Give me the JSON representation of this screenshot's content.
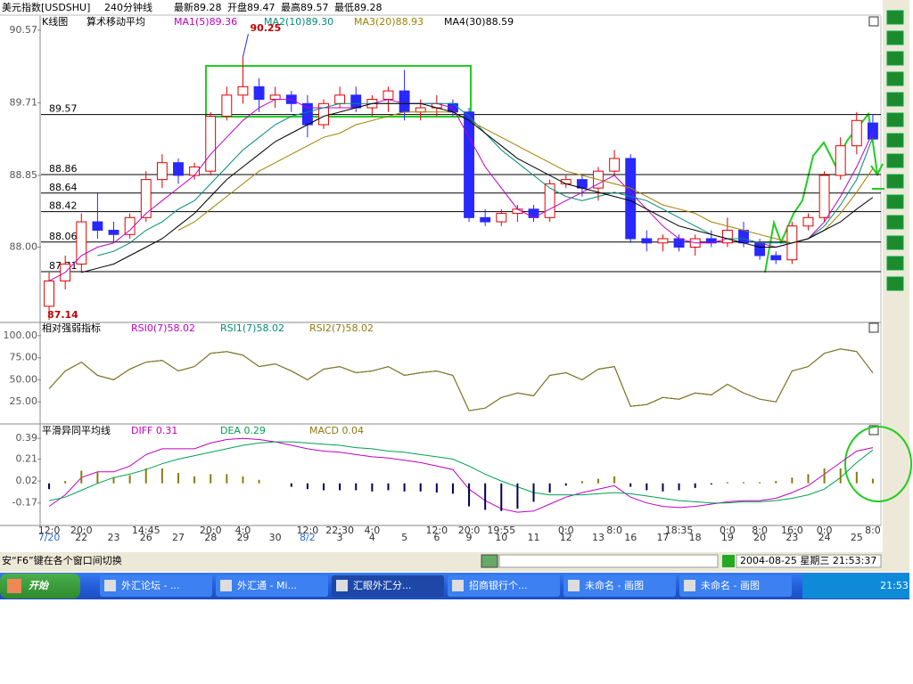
{
  "header": {
    "title": "美元指数[USDSHU]",
    "period": "240分钟线",
    "latest": "最新89.28",
    "open": "开盘89.47",
    "high": "最高89.57",
    "low": "最低89.28"
  },
  "chart_data": [
    {
      "type": "candlestick",
      "title": "K线图",
      "subtitle": "算术移动平均",
      "categories": [
        "7/20",
        null,
        "22",
        null,
        "23",
        null,
        "26",
        null,
        "27",
        null,
        "28",
        null,
        "29",
        null,
        "30",
        null,
        "8/2",
        null,
        "3",
        null,
        "4",
        null,
        "5",
        null,
        "6",
        null,
        "9",
        null,
        "10",
        null,
        "11",
        null,
        "12",
        null,
        "13",
        null,
        "16",
        null,
        "17",
        null,
        "18",
        null,
        "19",
        null,
        "20",
        null,
        "23",
        null,
        "24",
        null,
        "25",
        null
      ],
      "time_labels": [
        "12:0",
        null,
        "20:0",
        null,
        null,
        null,
        "14:45",
        null,
        null,
        null,
        "20:0",
        null,
        "4:0",
        null,
        null,
        null,
        "12:0",
        null,
        "22:30",
        null,
        "4:0",
        null,
        null,
        null,
        "12:0",
        null,
        "20:0",
        null,
        "19:55",
        null,
        null,
        null,
        "0:0",
        null,
        null,
        "8:0",
        null,
        null,
        null,
        "18:35",
        null,
        null,
        "0:0",
        null,
        "8:0",
        null,
        "16:0",
        null,
        "0:0",
        null,
        null,
        "8:0"
      ],
      "open": [
        87.3,
        87.6,
        87.8,
        88.3,
        88.2,
        88.15,
        88.35,
        88.8,
        89.0,
        88.85,
        88.9,
        89.55,
        89.8,
        89.9,
        89.75,
        89.8,
        89.7,
        89.45,
        89.7,
        89.8,
        89.65,
        89.75,
        89.85,
        89.6,
        89.65,
        89.7,
        89.6,
        88.35,
        88.3,
        88.4,
        88.45,
        88.35,
        88.75,
        88.8,
        88.7,
        88.9,
        89.05,
        88.1,
        88.05,
        88.1,
        88.0,
        88.1,
        88.05,
        88.2,
        88.05,
        87.9,
        87.85,
        88.25,
        88.35,
        88.85,
        89.2,
        89.47
      ],
      "high": [
        87.7,
        87.9,
        88.4,
        88.65,
        88.3,
        88.4,
        88.9,
        89.1,
        89.05,
        89.0,
        89.6,
        89.9,
        90.25,
        90.0,
        89.9,
        89.85,
        89.8,
        89.75,
        89.9,
        89.9,
        89.8,
        89.9,
        90.1,
        89.75,
        89.8,
        89.75,
        89.65,
        88.45,
        88.45,
        88.5,
        88.5,
        88.8,
        88.85,
        88.85,
        88.95,
        89.15,
        89.1,
        88.2,
        88.15,
        88.15,
        88.15,
        88.2,
        88.35,
        88.3,
        88.1,
        87.95,
        88.3,
        88.4,
        88.9,
        89.3,
        89.6,
        89.57
      ],
      "low": [
        87.14,
        87.5,
        87.7,
        88.1,
        88.05,
        88.1,
        88.3,
        88.7,
        88.75,
        88.8,
        88.85,
        89.5,
        89.7,
        89.6,
        89.65,
        89.6,
        89.3,
        89.4,
        89.65,
        89.6,
        89.55,
        89.6,
        89.5,
        89.5,
        89.55,
        89.55,
        88.3,
        88.25,
        88.25,
        88.3,
        88.3,
        88.3,
        88.7,
        88.6,
        88.55,
        88.85,
        88.05,
        87.95,
        87.95,
        87.95,
        87.9,
        88.0,
        88.0,
        88.0,
        87.85,
        87.8,
        87.8,
        88.2,
        88.3,
        88.8,
        89.1,
        89.28
      ],
      "close": [
        87.6,
        87.8,
        88.3,
        88.2,
        88.15,
        88.35,
        88.8,
        89.0,
        88.85,
        88.95,
        89.55,
        89.8,
        89.9,
        89.75,
        89.8,
        89.7,
        89.45,
        89.7,
        89.8,
        89.65,
        89.75,
        89.85,
        89.6,
        89.65,
        89.7,
        89.6,
        88.35,
        88.3,
        88.4,
        88.45,
        88.35,
        88.75,
        88.8,
        88.7,
        88.9,
        89.05,
        88.1,
        88.05,
        88.1,
        88.0,
        88.1,
        88.05,
        88.2,
        88.05,
        87.9,
        87.85,
        88.25,
        88.35,
        88.85,
        89.2,
        89.5,
        89.28
      ],
      "up_color": "#e00000",
      "down_color": "#2828ff",
      "series": [
        {
          "name": "MA1(5)89.36",
          "color": "#c000c0",
          "values": [
            87.6,
            87.7,
            87.9,
            88.0,
            88.05,
            88.2,
            88.4,
            88.55,
            88.7,
            88.85,
            89.1,
            89.3,
            89.5,
            89.65,
            89.75,
            89.75,
            89.65,
            89.65,
            89.65,
            89.65,
            89.7,
            89.75,
            89.7,
            89.7,
            89.7,
            89.65,
            89.3,
            88.95,
            88.7,
            88.45,
            88.35,
            88.45,
            88.55,
            88.65,
            88.75,
            88.85,
            88.65,
            88.45,
            88.25,
            88.1,
            88.05,
            88.05,
            88.1,
            88.1,
            88.05,
            88.0,
            88.05,
            88.1,
            88.3,
            88.6,
            88.95,
            89.36
          ]
        },
        {
          "name": "MA2(10)89.30",
          "color": "#008c78",
          "values": [
            null,
            null,
            null,
            87.9,
            87.95,
            88.05,
            88.2,
            88.3,
            88.45,
            88.55,
            88.75,
            88.95,
            89.15,
            89.3,
            89.45,
            89.55,
            89.6,
            89.65,
            89.7,
            89.7,
            89.7,
            89.7,
            89.7,
            89.7,
            89.7,
            89.7,
            89.55,
            89.35,
            89.15,
            89.0,
            88.85,
            88.7,
            88.6,
            88.55,
            88.6,
            88.65,
            88.6,
            88.55,
            88.45,
            88.35,
            88.25,
            88.15,
            88.1,
            88.1,
            88.05,
            88.05,
            88.05,
            88.1,
            88.25,
            88.5,
            88.8,
            89.3
          ]
        },
        {
          "name": "MA3(20)88.93",
          "color": "#a08000",
          "values": [
            null,
            null,
            null,
            null,
            null,
            null,
            null,
            null,
            88.2,
            88.3,
            88.45,
            88.6,
            88.75,
            88.9,
            89.0,
            89.1,
            89.2,
            89.3,
            89.35,
            89.45,
            89.5,
            89.55,
            89.6,
            89.6,
            89.6,
            89.6,
            89.5,
            89.4,
            89.3,
            89.2,
            89.1,
            89.0,
            88.9,
            88.85,
            88.8,
            88.75,
            88.7,
            88.6,
            88.5,
            88.45,
            88.4,
            88.3,
            88.25,
            88.2,
            88.15,
            88.1,
            88.05,
            88.1,
            88.2,
            88.4,
            88.65,
            88.93
          ]
        },
        {
          "name": "MA4(30)88.59",
          "color": "#000000",
          "values": [
            null,
            null,
            87.7,
            87.75,
            87.8,
            87.9,
            88.0,
            88.1,
            88.25,
            88.4,
            88.6,
            88.8,
            88.95,
            89.1,
            89.25,
            89.35,
            89.45,
            89.55,
            89.6,
            89.65,
            89.7,
            89.7,
            89.7,
            89.7,
            89.65,
            89.6,
            89.5,
            89.35,
            89.2,
            89.05,
            88.95,
            88.85,
            88.75,
            88.7,
            88.65,
            88.6,
            88.55,
            88.45,
            88.35,
            88.25,
            88.2,
            88.15,
            88.1,
            88.05,
            88.0,
            88.0,
            88.05,
            88.1,
            88.2,
            88.3,
            88.45,
            88.59
          ]
        }
      ],
      "ylim": [
        87.13,
        90.61
      ],
      "yticks": [
        {
          "value": 88,
          "label": "88.00"
        },
        88.85,
        89.71,
        90.57
      ],
      "reference_lines": [
        89.57,
        88.86,
        88.64,
        88.42,
        88.06,
        87.71
      ],
      "high_label": 90.25,
      "low_label": 87.14
    },
    {
      "type": "line",
      "title": "相对强弱指标",
      "series": [
        {
          "name": "RSI0(7)58.02",
          "color": "#c000c0",
          "values": [
            40,
            60,
            70,
            55,
            50,
            62,
            70,
            72,
            60,
            65,
            80,
            82,
            78,
            65,
            68,
            60,
            50,
            62,
            65,
            58,
            60,
            65,
            55,
            58,
            60,
            55,
            15,
            18,
            30,
            35,
            32,
            55,
            58,
            50,
            62,
            65,
            20,
            22,
            30,
            28,
            35,
            33,
            45,
            35,
            28,
            25,
            60,
            65,
            80,
            85,
            82,
            58.02
          ]
        },
        {
          "name": "RSI1(7)58.02",
          "color": "#008c78",
          "values": [
            40,
            60,
            70,
            55,
            50,
            62,
            70,
            72,
            60,
            65,
            80,
            82,
            78,
            65,
            68,
            60,
            50,
            62,
            65,
            58,
            60,
            65,
            55,
            58,
            60,
            55,
            15,
            18,
            30,
            35,
            32,
            55,
            58,
            50,
            62,
            65,
            20,
            22,
            30,
            28,
            35,
            33,
            45,
            35,
            28,
            25,
            60,
            65,
            80,
            85,
            82,
            58.02
          ]
        },
        {
          "name": "RSI2(7)58.02",
          "color": "#8c7a10",
          "values": [
            40,
            60,
            70,
            55,
            50,
            62,
            70,
            72,
            60,
            65,
            80,
            82,
            78,
            65,
            68,
            60,
            50,
            62,
            65,
            58,
            60,
            65,
            55,
            58,
            60,
            55,
            15,
            18,
            30,
            35,
            32,
            55,
            58,
            50,
            62,
            65,
            20,
            22,
            30,
            28,
            35,
            33,
            45,
            35,
            28,
            25,
            60,
            65,
            80,
            85,
            82,
            58.02
          ]
        }
      ],
      "ylim": [
        1,
        112
      ],
      "yticks": [
        {
          "value": 25,
          "label": "25.00"
        },
        {
          "value": 50,
          "label": "50.00"
        },
        {
          "value": 75,
          "label": "75.00"
        },
        {
          "value": 100,
          "label": "100.00"
        }
      ]
    },
    {
      "type": "line",
      "title": "平滑异同平均线",
      "series": [
        {
          "name": "DIFF 0.31",
          "color": "#c000c0",
          "values": [
            -0.2,
            -0.1,
            0.05,
            0.1,
            0.1,
            0.15,
            0.25,
            0.3,
            0.3,
            0.3,
            0.35,
            0.38,
            0.39,
            0.38,
            0.36,
            0.33,
            0.3,
            0.28,
            0.27,
            0.25,
            0.23,
            0.22,
            0.2,
            0.18,
            0.15,
            0.12,
            -0.05,
            -0.15,
            -0.22,
            -0.25,
            -0.24,
            -0.18,
            -0.12,
            -0.08,
            -0.05,
            -0.02,
            -0.12,
            -0.17,
            -0.2,
            -0.21,
            -0.2,
            -0.18,
            -0.16,
            -0.15,
            -0.15,
            -0.13,
            -0.08,
            -0.02,
            0.08,
            0.18,
            0.28,
            0.31
          ]
        },
        {
          "name": "DEA 0.29",
          "color": "#00a050",
          "values": [
            -0.15,
            -0.12,
            -0.06,
            0.0,
            0.05,
            0.08,
            0.12,
            0.17,
            0.21,
            0.24,
            0.27,
            0.3,
            0.33,
            0.35,
            0.36,
            0.36,
            0.35,
            0.34,
            0.33,
            0.31,
            0.3,
            0.28,
            0.27,
            0.25,
            0.23,
            0.21,
            0.15,
            0.08,
            0.02,
            -0.03,
            -0.08,
            -0.1,
            -0.1,
            -0.1,
            -0.09,
            -0.08,
            -0.09,
            -0.11,
            -0.13,
            -0.15,
            -0.16,
            -0.17,
            -0.17,
            -0.16,
            -0.16,
            -0.15,
            -0.13,
            -0.1,
            -0.05,
            0.05,
            0.18,
            0.29
          ]
        },
        {
          "name": "MACD 0.04",
          "color": "#8c7a10",
          "negative_color": "#000050",
          "style": "bar",
          "values": [
            -0.05,
            0.02,
            0.11,
            0.1,
            0.05,
            0.07,
            0.13,
            0.13,
            0.09,
            0.06,
            0.08,
            0.08,
            0.06,
            0.03,
            0.0,
            -0.03,
            -0.05,
            -0.06,
            -0.06,
            -0.06,
            -0.07,
            -0.06,
            -0.07,
            -0.07,
            -0.08,
            -0.09,
            -0.2,
            -0.23,
            -0.24,
            -0.22,
            -0.16,
            -0.08,
            -0.02,
            0.02,
            0.04,
            0.06,
            -0.03,
            -0.06,
            -0.07,
            -0.06,
            -0.04,
            -0.01,
            0.01,
            0.01,
            0.01,
            0.02,
            0.05,
            0.08,
            0.13,
            0.13,
            0.1,
            0.04
          ]
        }
      ],
      "ylim": [
        -0.35,
        0.5
      ],
      "yticks": [
        -0.17,
        0.02,
        0.21,
        0.39
      ]
    }
  ],
  "status_bar": {
    "hint": "安“F6”键在各个窗口间切换",
    "datetime": "2004-08-25 星期三 21:53:37"
  },
  "taskbar": {
    "start": "开始",
    "items": [
      "外汇论坛 - ...",
      "外汇通 - Mi...",
      "汇眼外汇分...",
      "招商银行个...",
      "未命名 - 画图",
      "未命名 - 画图"
    ],
    "clock": "21:53"
  }
}
